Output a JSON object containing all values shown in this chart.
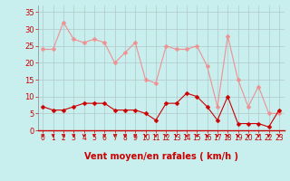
{
  "hours": [
    0,
    1,
    2,
    3,
    4,
    5,
    6,
    7,
    8,
    9,
    10,
    11,
    12,
    13,
    14,
    15,
    16,
    17,
    18,
    19,
    20,
    21,
    22,
    23
  ],
  "rafales": [
    24,
    24,
    32,
    27,
    26,
    27,
    26,
    20,
    23,
    26,
    15,
    14,
    25,
    24,
    24,
    25,
    19,
    7,
    28,
    15,
    7,
    13,
    5,
    5
  ],
  "moyen": [
    7,
    6,
    6,
    7,
    8,
    8,
    8,
    6,
    6,
    6,
    5,
    3,
    8,
    8,
    11,
    10,
    7,
    3,
    10,
    2,
    2,
    2,
    1,
    6
  ],
  "bg_color": "#c8eeee",
  "grid_color": "#b0c8c8",
  "line_color_rafales": "#f09090",
  "line_color_moyen": "#cc0000",
  "marker_color_rafales": "#f09090",
  "marker_color_moyen": "#cc0000",
  "arrow_color": "#cc0000",
  "xlabel": "Vent moyen/en rafales ( km/h )",
  "yticks": [
    0,
    5,
    10,
    15,
    20,
    25,
    30,
    35
  ],
  "ylim": [
    0,
    37
  ],
  "xlim": [
    -0.5,
    23.5
  ],
  "tick_color": "#cc0000",
  "spine_color": "#888888"
}
